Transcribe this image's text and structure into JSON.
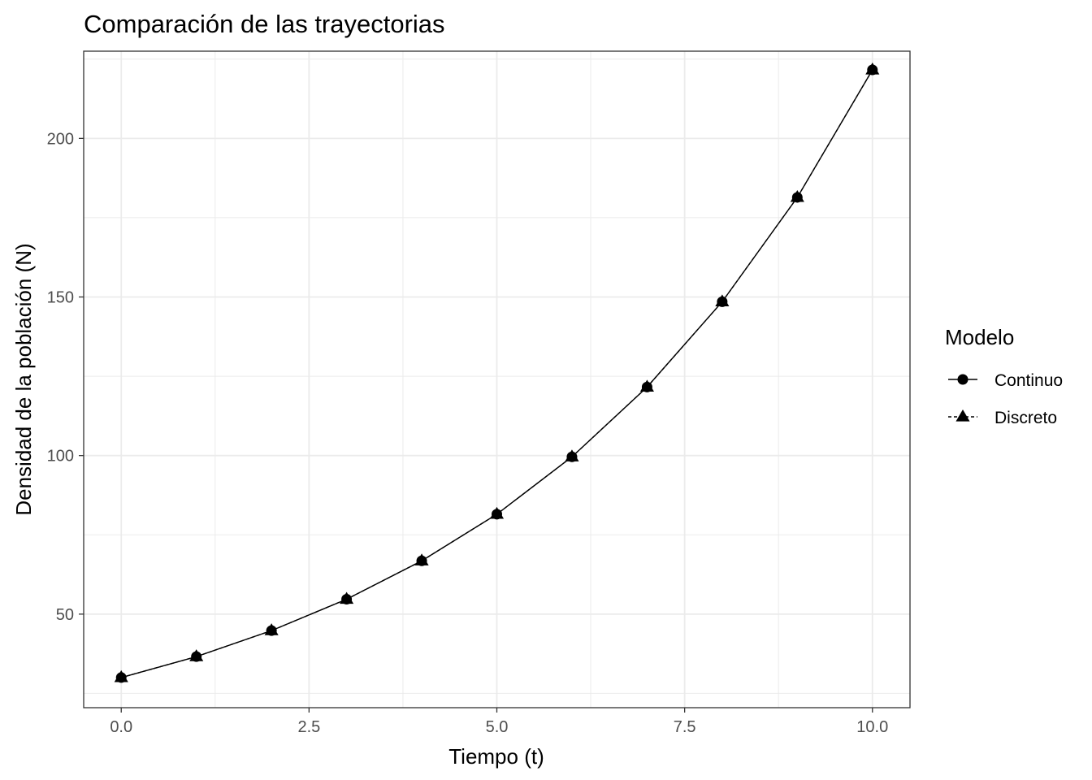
{
  "chart_data": {
    "type": "line",
    "title": "Comparación de las trayectorias",
    "xlabel": "Tiempo (t)",
    "ylabel": "Densidad de la población (N)",
    "x": [
      0,
      1,
      2,
      3,
      4,
      5,
      6,
      7,
      8,
      9,
      10
    ],
    "xlim": [
      -0.5,
      10.5
    ],
    "ylim": [
      20.5,
      227.5
    ],
    "x_ticks": [
      0,
      2.5,
      5,
      7.5,
      10
    ],
    "x_tick_labels": [
      "0.0",
      "2.5",
      "5.0",
      "7.5",
      "10.0"
    ],
    "y_ticks": [
      50,
      100,
      150,
      200
    ],
    "y_tick_labels": [
      "50",
      "100",
      "150",
      "200"
    ],
    "grid": true,
    "legend": {
      "title": "Modelo",
      "position": "right"
    },
    "series": [
      {
        "name": "Continuo",
        "marker": "circle",
        "line_style": "solid",
        "color": "#000000",
        "values": [
          30,
          36.6,
          44.8,
          54.7,
          66.8,
          81.5,
          99.6,
          121.6,
          148.5,
          181.4,
          221.6
        ]
      },
      {
        "name": "Discreto",
        "marker": "triangle",
        "line_style": "dashed",
        "color": "#000000",
        "values": [
          30,
          36.6,
          44.8,
          54.7,
          66.8,
          81.5,
          99.6,
          121.6,
          148.5,
          181.4,
          221.6
        ]
      }
    ]
  }
}
